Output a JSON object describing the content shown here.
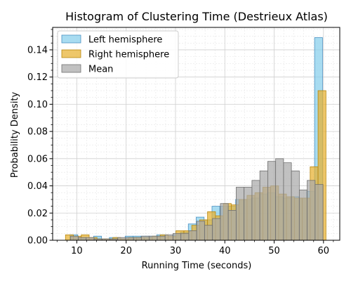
{
  "chart_data": {
    "type": "bar",
    "title": "Histogram of Clustering Time (Destrieux Atlas)",
    "xlabel": "Running Time (seconds)",
    "ylabel": "Probability Density",
    "xlim": [
      5.1,
      63.3
    ],
    "ylim": [
      0,
      0.1565
    ],
    "xticks": [
      10,
      20,
      30,
      40,
      50,
      60
    ],
    "xtick_labels": [
      "10",
      "20",
      "30",
      "40",
      "50",
      "60"
    ],
    "yticks": [
      0,
      0.02,
      0.04,
      0.06,
      0.08,
      0.1,
      0.12,
      0.14
    ],
    "ytick_labels": [
      "0.00",
      "0.02",
      "0.04",
      "0.06",
      "0.08",
      "0.10",
      "0.12",
      "0.14"
    ],
    "grid": true,
    "legend_position": "top-left",
    "series": [
      {
        "name": "Left hemisphere",
        "color": "#87CEEB",
        "edge": "#4a90c2",
        "bins": [
          [
            8.6,
            10.2,
            0.004
          ],
          [
            10.2,
            11.8,
            0.002
          ],
          [
            13.4,
            15.0,
            0.003
          ],
          [
            16.6,
            18.2,
            0.002
          ],
          [
            19.8,
            21.4,
            0.003
          ],
          [
            21.4,
            23.0,
            0.003
          ],
          [
            23.0,
            24.6,
            0.003
          ],
          [
            24.6,
            26.2,
            0.003
          ],
          [
            26.2,
            27.8,
            0.004
          ],
          [
            29.4,
            31.0,
            0.004
          ],
          [
            31.0,
            32.6,
            0.006
          ],
          [
            32.6,
            34.2,
            0.012
          ],
          [
            34.2,
            35.8,
            0.017
          ],
          [
            35.8,
            37.4,
            0.015
          ],
          [
            37.4,
            39.0,
            0.025
          ],
          [
            39.0,
            40.6,
            0.025
          ],
          [
            40.6,
            42.2,
            0.025
          ],
          [
            42.2,
            43.8,
            0.03
          ],
          [
            43.8,
            45.4,
            0.03
          ],
          [
            45.4,
            47.0,
            0.031
          ],
          [
            47.0,
            48.6,
            0.034
          ],
          [
            48.6,
            50.2,
            0.035
          ],
          [
            50.2,
            51.8,
            0.032
          ],
          [
            51.8,
            53.4,
            0.031
          ],
          [
            53.4,
            55.0,
            0.032
          ],
          [
            55.0,
            56.6,
            0.031
          ],
          [
            56.6,
            58.2,
            0.036
          ],
          [
            58.2,
            59.8,
            0.149
          ]
        ]
      },
      {
        "name": "Right hemisphere",
        "color": "#E8B230",
        "edge": "#b8860b",
        "bins": [
          [
            7.7,
            9.3,
            0.004
          ],
          [
            9.3,
            10.9,
            0.003
          ],
          [
            10.9,
            12.5,
            0.004
          ],
          [
            12.5,
            14.1,
            0.002
          ],
          [
            14.1,
            15.7,
            0.001
          ],
          [
            15.7,
            17.3,
            0.001
          ],
          [
            17.3,
            18.9,
            0.002
          ],
          [
            18.9,
            20.5,
            0.001
          ],
          [
            20.5,
            22.1,
            0.002
          ],
          [
            22.1,
            23.7,
            0.002
          ],
          [
            23.7,
            25.3,
            0.002
          ],
          [
            25.3,
            26.9,
            0.003
          ],
          [
            26.9,
            28.5,
            0.004
          ],
          [
            28.5,
            30.1,
            0.003
          ],
          [
            30.1,
            31.7,
            0.007
          ],
          [
            31.7,
            33.3,
            0.007
          ],
          [
            33.3,
            34.9,
            0.011
          ],
          [
            34.9,
            36.5,
            0.015
          ],
          [
            36.5,
            38.1,
            0.021
          ],
          [
            38.1,
            39.7,
            0.018
          ],
          [
            39.7,
            41.3,
            0.027
          ],
          [
            41.3,
            42.9,
            0.026
          ],
          [
            42.9,
            44.5,
            0.03
          ],
          [
            44.5,
            46.1,
            0.033
          ],
          [
            46.1,
            47.7,
            0.035
          ],
          [
            47.7,
            49.3,
            0.039
          ],
          [
            49.3,
            50.9,
            0.04
          ],
          [
            50.9,
            52.5,
            0.034
          ],
          [
            52.5,
            54.1,
            0.032
          ],
          [
            54.1,
            55.7,
            0.031
          ],
          [
            55.7,
            57.3,
            0.031
          ],
          [
            57.3,
            58.9,
            0.054
          ],
          [
            58.9,
            60.5,
            0.11
          ]
        ]
      },
      {
        "name": "Mean",
        "color": "#A9A9A9",
        "edge": "#707070",
        "bins": [
          [
            8.7,
            10.3,
            0.003
          ],
          [
            10.3,
            11.9,
            0.002
          ],
          [
            11.9,
            13.5,
            0.002
          ],
          [
            13.5,
            15.1,
            0.001
          ],
          [
            15.1,
            16.7,
            0.001
          ],
          [
            16.7,
            18.3,
            0.001
          ],
          [
            18.3,
            19.9,
            0.002
          ],
          [
            19.9,
            21.5,
            0.002
          ],
          [
            21.5,
            23.1,
            0.002
          ],
          [
            23.1,
            24.7,
            0.003
          ],
          [
            24.7,
            26.3,
            0.003
          ],
          [
            26.3,
            27.9,
            0.003
          ],
          [
            27.9,
            29.5,
            0.004
          ],
          [
            29.5,
            31.1,
            0.005
          ],
          [
            31.1,
            32.7,
            0.005
          ],
          [
            32.7,
            34.3,
            0.007
          ],
          [
            34.3,
            35.9,
            0.014
          ],
          [
            35.9,
            37.5,
            0.011
          ],
          [
            37.5,
            39.1,
            0.016
          ],
          [
            39.1,
            40.7,
            0.027
          ],
          [
            40.7,
            42.3,
            0.022
          ],
          [
            42.3,
            43.9,
            0.039
          ],
          [
            43.9,
            45.5,
            0.039
          ],
          [
            45.5,
            47.1,
            0.044
          ],
          [
            47.1,
            48.7,
            0.051
          ],
          [
            48.7,
            50.3,
            0.058
          ],
          [
            50.3,
            51.9,
            0.06
          ],
          [
            51.9,
            53.5,
            0.057
          ],
          [
            53.5,
            55.1,
            0.051
          ],
          [
            55.1,
            56.7,
            0.037
          ],
          [
            56.7,
            58.3,
            0.044
          ],
          [
            58.3,
            59.9,
            0.041
          ]
        ]
      }
    ]
  }
}
